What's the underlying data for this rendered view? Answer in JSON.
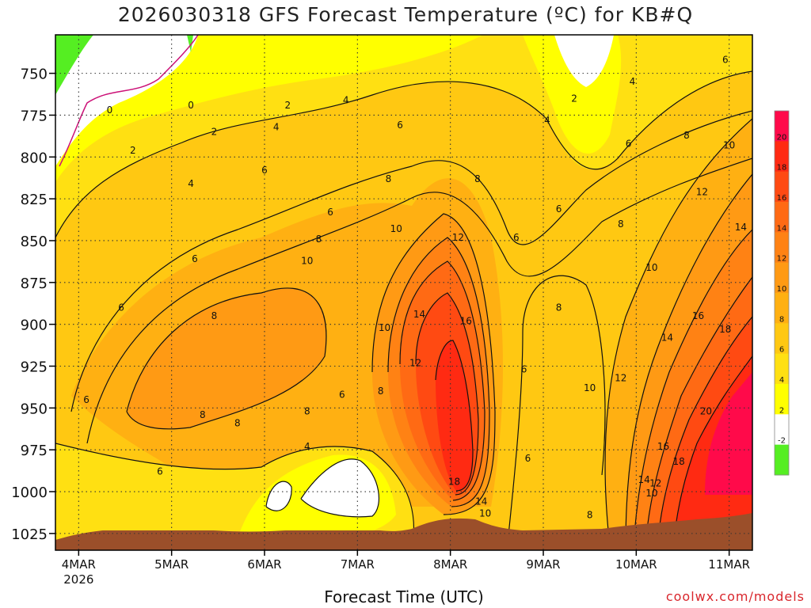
{
  "title": "2026030318 GFS Forecast Temperature (ºC) for KB#Q",
  "xlabel": "Forecast Time (UTC)",
  "credit": "coolwx.com/models",
  "chart_data": {
    "type": "heatmap",
    "title": "2026030318 GFS Forecast Temperature (ºC) for KB#Q",
    "xlabel": "Forecast Time (UTC)",
    "ylabel": "",
    "x_ticks": [
      {
        "label": "4MAR",
        "sub": "2026",
        "hours": 6
      },
      {
        "label": "5MAR",
        "sub": "",
        "hours": 30
      },
      {
        "label": "6MAR",
        "sub": "",
        "hours": 54
      },
      {
        "label": "7MAR",
        "sub": "",
        "hours": 78
      },
      {
        "label": "8MAR",
        "sub": "",
        "hours": 102
      },
      {
        "label": "9MAR",
        "sub": "",
        "hours": 126
      },
      {
        "label": "10MAR",
        "sub": "",
        "hours": 150
      },
      {
        "label": "11MAR",
        "sub": "",
        "hours": 174
      }
    ],
    "xlim": [
      0,
      180
    ],
    "y_ticks": [
      750,
      775,
      800,
      825,
      850,
      875,
      900,
      925,
      950,
      975,
      1000,
      1025
    ],
    "ylim": [
      727,
      1035
    ],
    "grid": true,
    "colorbar": {
      "labels": [
        "20",
        "18",
        "16",
        "14",
        "12",
        "10",
        "8",
        "6",
        "4",
        "2",
        "-2"
      ],
      "colors": [
        "#ff0a4a",
        "#ff2a12",
        "#ff4a12",
        "#ff6a14",
        "#ff8214",
        "#ff9a14",
        "#ffb012",
        "#ffc812",
        "#ffe012",
        "#ffff00",
        "#ffffff",
        "#55ee22"
      ]
    },
    "terrain_color": "#9b4f2a",
    "contour_labels": [
      {
        "t": 14,
        "p": 772,
        "v": "0"
      },
      {
        "t": 35,
        "p": 769,
        "v": "0"
      },
      {
        "t": 20,
        "p": 796,
        "v": "2"
      },
      {
        "t": 41,
        "p": 785,
        "v": "2"
      },
      {
        "t": 60,
        "p": 769,
        "v": "2"
      },
      {
        "t": 134,
        "p": 765,
        "v": "2"
      },
      {
        "t": 75,
        "p": 766,
        "v": "4"
      },
      {
        "t": 57,
        "p": 782,
        "v": "4"
      },
      {
        "t": 35,
        "p": 816,
        "v": "4"
      },
      {
        "t": 127,
        "p": 778,
        "v": "4"
      },
      {
        "t": 149,
        "p": 755,
        "v": "4"
      },
      {
        "t": 65,
        "p": 973,
        "v": "4"
      },
      {
        "t": 89,
        "p": 781,
        "v": "6"
      },
      {
        "t": 54,
        "p": 808,
        "v": "6"
      },
      {
        "t": 71,
        "p": 833,
        "v": "6"
      },
      {
        "t": 36,
        "p": 861,
        "v": "6"
      },
      {
        "t": 17,
        "p": 890,
        "v": "6"
      },
      {
        "t": 8,
        "p": 945,
        "v": "6"
      },
      {
        "t": 27,
        "p": 988,
        "v": "6"
      },
      {
        "t": 119,
        "p": 848,
        "v": "6"
      },
      {
        "t": 130,
        "p": 831,
        "v": "6"
      },
      {
        "t": 148,
        "p": 792,
        "v": "6"
      },
      {
        "t": 173,
        "p": 742,
        "v": "6"
      },
      {
        "t": 121,
        "p": 927,
        "v": "6"
      },
      {
        "t": 122,
        "p": 980,
        "v": "6"
      },
      {
        "t": 74,
        "p": 942,
        "v": "6"
      },
      {
        "t": 86,
        "p": 813,
        "v": "8"
      },
      {
        "t": 109,
        "p": 813,
        "v": "8"
      },
      {
        "t": 68,
        "p": 849,
        "v": "8"
      },
      {
        "t": 41,
        "p": 895,
        "v": "8"
      },
      {
        "t": 38,
        "p": 954,
        "v": "8"
      },
      {
        "t": 47,
        "p": 959,
        "v": "8"
      },
      {
        "t": 65,
        "p": 952,
        "v": "8"
      },
      {
        "t": 84,
        "p": 940,
        "v": "8"
      },
      {
        "t": 130,
        "p": 890,
        "v": "8"
      },
      {
        "t": 146,
        "p": 840,
        "v": "8"
      },
      {
        "t": 163,
        "p": 787,
        "v": "8"
      },
      {
        "t": 138,
        "p": 1014,
        "v": "8"
      },
      {
        "t": 65,
        "p": 862,
        "v": "10"
      },
      {
        "t": 88,
        "p": 843,
        "v": "10"
      },
      {
        "t": 85,
        "p": 902,
        "v": "10"
      },
      {
        "t": 154,
        "p": 866,
        "v": "10"
      },
      {
        "t": 174,
        "p": 793,
        "v": "10"
      },
      {
        "t": 138,
        "p": 938,
        "v": "10"
      },
      {
        "t": 154,
        "p": 1001,
        "v": "10"
      },
      {
        "t": 111,
        "p": 1013,
        "v": "10"
      },
      {
        "t": 104,
        "p": 848,
        "v": "12"
      },
      {
        "t": 93,
        "p": 923,
        "v": "12"
      },
      {
        "t": 146,
        "p": 932,
        "v": "12"
      },
      {
        "t": 167,
        "p": 821,
        "v": "12"
      },
      {
        "t": 155,
        "p": 995,
        "v": "12"
      },
      {
        "t": 94,
        "p": 894,
        "v": "14"
      },
      {
        "t": 177,
        "p": 842,
        "v": "14"
      },
      {
        "t": 158,
        "p": 908,
        "v": "14"
      },
      {
        "t": 152,
        "p": 993,
        "v": "14"
      },
      {
        "t": 110,
        "p": 1006,
        "v": "14"
      },
      {
        "t": 106,
        "p": 898,
        "v": "16"
      },
      {
        "t": 166,
        "p": 895,
        "v": "16"
      },
      {
        "t": 157,
        "p": 973,
        "v": "16"
      },
      {
        "t": 103,
        "p": 994,
        "v": "18"
      },
      {
        "t": 173,
        "p": 903,
        "v": "18"
      },
      {
        "t": 161,
        "p": 982,
        "v": "18"
      },
      {
        "t": 168,
        "p": 952,
        "v": "20"
      }
    ]
  }
}
